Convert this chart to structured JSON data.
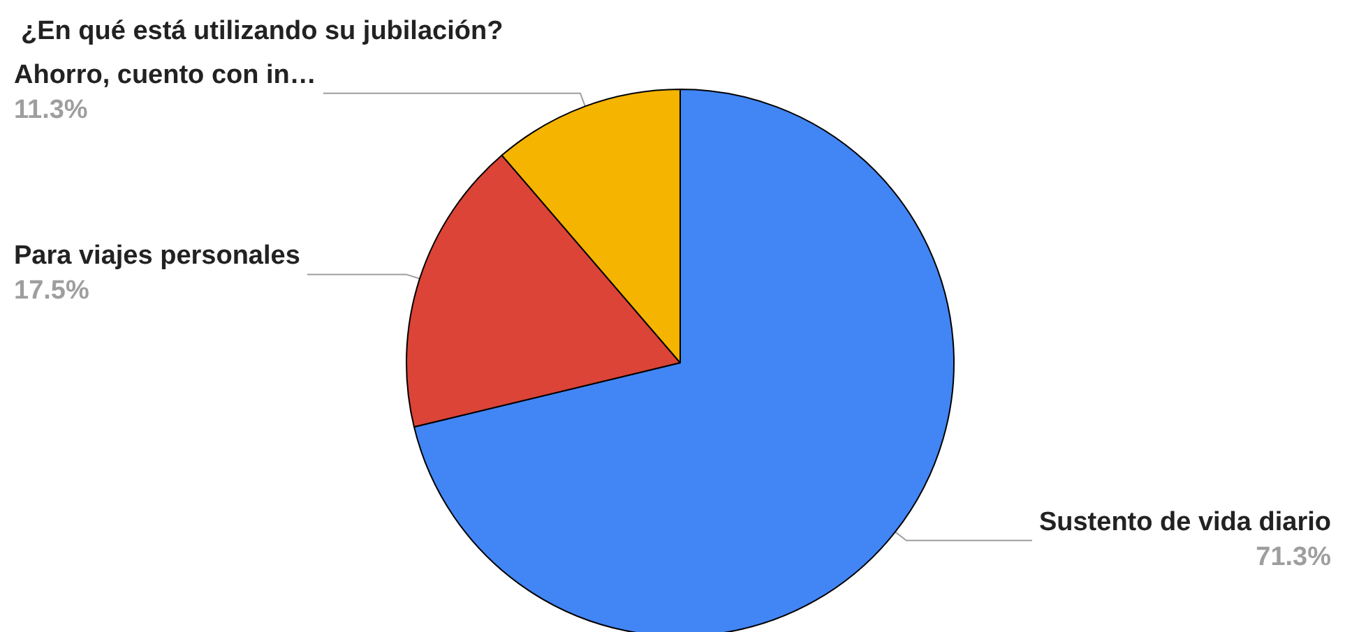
{
  "chart_data": {
    "type": "pie",
    "title": "¿En qué está utilizando su jubilación?",
    "categories": [
      "Sustento de vida diario",
      "Para viajes personales",
      "Ahorro, cuento con in…"
    ],
    "values": [
      71.3,
      17.5,
      11.3
    ],
    "value_labels": [
      "71.3%",
      "17.5%",
      "11.3%"
    ],
    "colors": [
      "#4285f4",
      "#db4437",
      "#f4b400"
    ],
    "legend": false
  }
}
